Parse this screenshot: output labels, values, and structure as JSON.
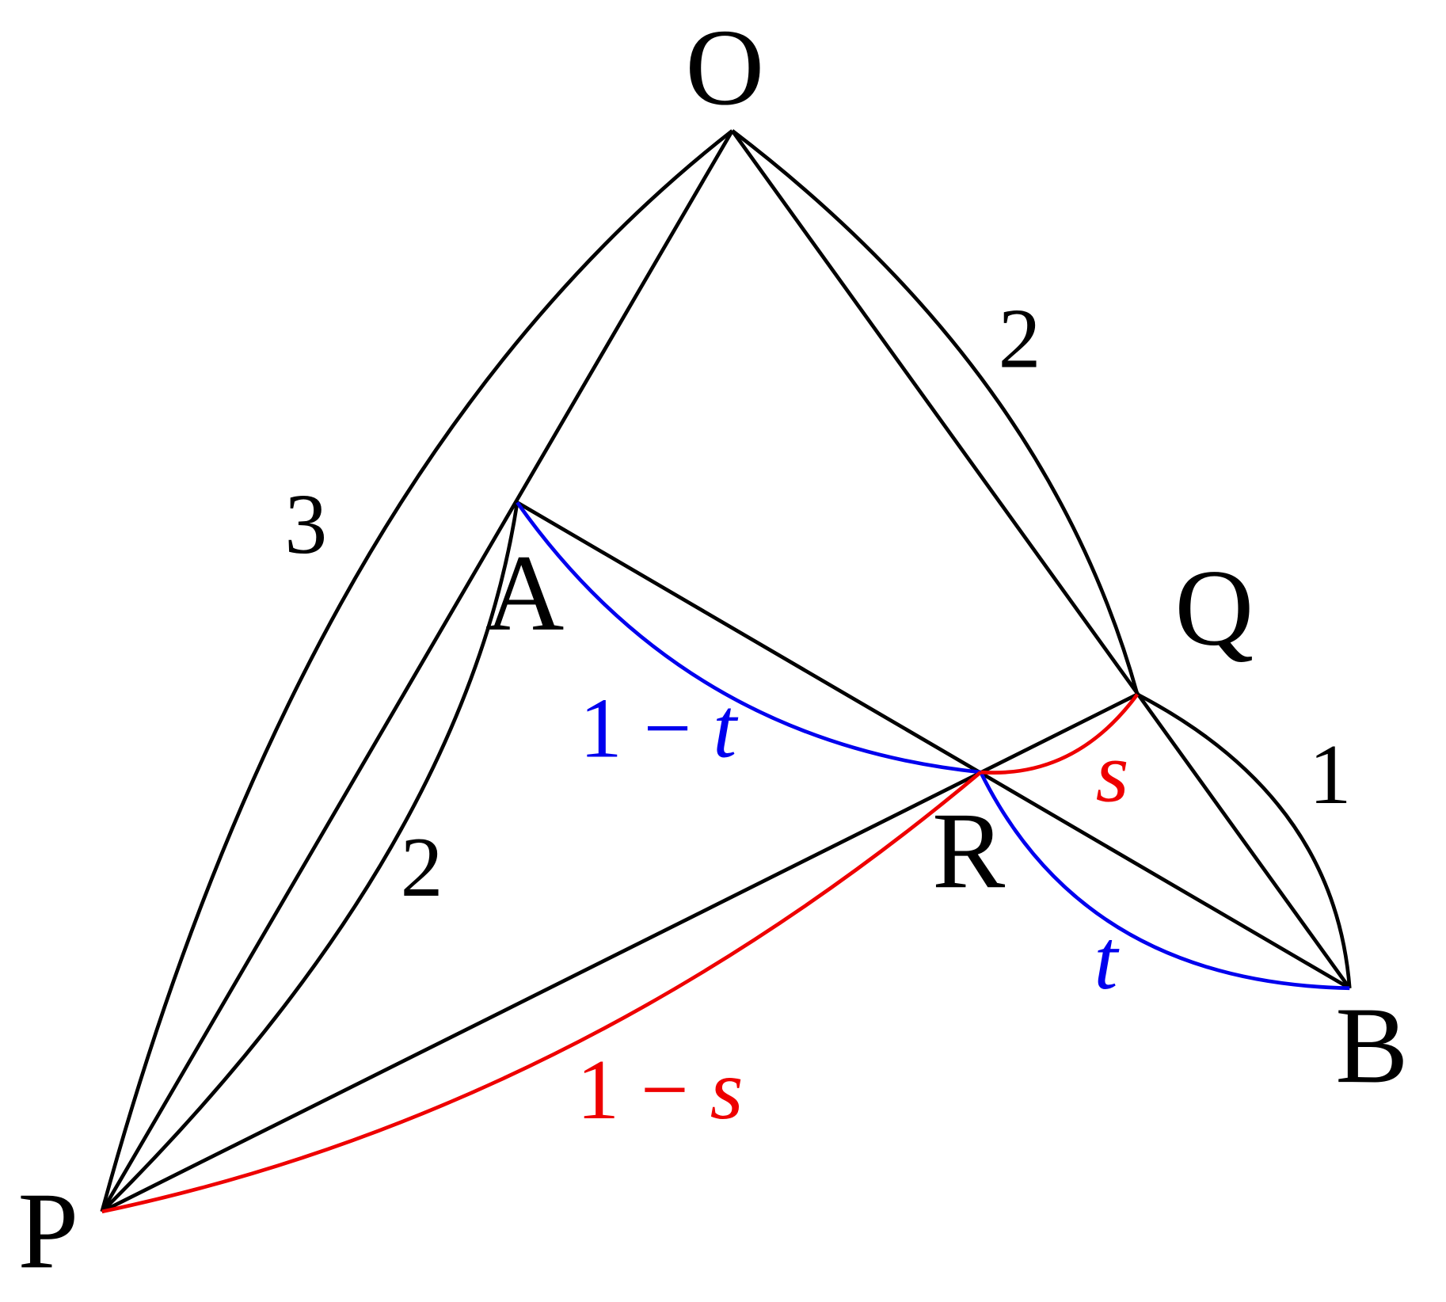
{
  "vertices": {
    "O": "O",
    "P": "P",
    "A": "A",
    "Q": "Q",
    "R": "R",
    "B": "B"
  },
  "edge_labels": {
    "OP": "3",
    "AP": "2",
    "OQ": "2",
    "QB": "1"
  },
  "ratio_labels": {
    "AR": {
      "prefix": "1 −",
      "variable": "t"
    },
    "RB": {
      "variable": "t"
    },
    "RQ": {
      "variable": "s"
    },
    "PR": {
      "prefix": "1 −",
      "variable": "s"
    }
  }
}
